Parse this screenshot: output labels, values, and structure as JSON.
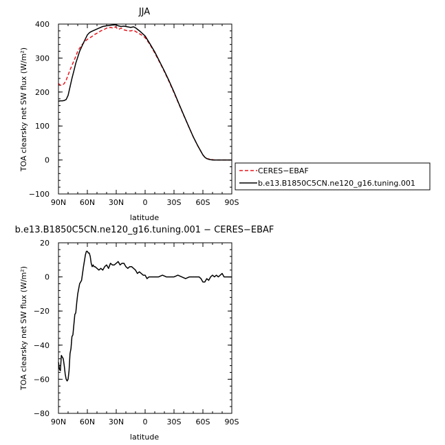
{
  "chart_data": [
    {
      "type": "line",
      "title": "JJA",
      "xlabel": "latitude",
      "ylabel": "TOA clearsky net SW flux (W/m²)",
      "xlim": [
        90,
        -90
      ],
      "ylim": [
        -100,
        400
      ],
      "xticks": [
        90,
        60,
        30,
        0,
        -30,
        -60,
        -90
      ],
      "xtick_labels": [
        "90N",
        "60N",
        "30N",
        "0",
        "30S",
        "60S",
        "90S"
      ],
      "yticks": [
        -100,
        0,
        100,
        200,
        300,
        400
      ],
      "ytick_labels": [
        "−100",
        "0",
        "100",
        "200",
        "300",
        "400"
      ],
      "grid": false,
      "legend": "outside-right",
      "series": [
        {
          "name": "CERES−EBAF",
          "color": "#e8141b",
          "dash": "dashed",
          "x": [
            90,
            88,
            86,
            84,
            82,
            80,
            78,
            75,
            72,
            70,
            66,
            62,
            60,
            56,
            52,
            50,
            46,
            42,
            40,
            36,
            33,
            31,
            29,
            27,
            25,
            22,
            18,
            15,
            12,
            8,
            5,
            2,
            0,
            -5,
            -10,
            -15,
            -20,
            -25,
            -30,
            -35,
            -40,
            -45,
            -50,
            -55,
            -60,
            -62,
            -64,
            -66,
            -68,
            -70,
            -72,
            -75,
            -80,
            -85,
            -90
          ],
          "y": [
            225,
            220,
            220,
            225,
            235,
            250,
            265,
            285,
            305,
            320,
            338,
            350,
            355,
            362,
            370,
            373,
            380,
            385,
            388,
            390,
            388,
            392,
            387,
            385,
            388,
            383,
            380,
            380,
            382,
            375,
            370,
            365,
            360,
            340,
            315,
            288,
            260,
            230,
            198,
            165,
            132,
            100,
            68,
            40,
            15,
            8,
            4,
            3,
            2,
            1,
            0,
            0,
            0,
            0,
            0
          ]
        },
        {
          "name": "b.e13.B1850C5CN.ne120_g16.tuning.001",
          "color": "#000000",
          "dash": "solid",
          "x": [
            90,
            88,
            86,
            84,
            82,
            80,
            78,
            76,
            74,
            72,
            68,
            64,
            60,
            58,
            56,
            52,
            48,
            44,
            40,
            35,
            30,
            28,
            25,
            22,
            20,
            15,
            12,
            10,
            5,
            0,
            -5,
            -10,
            -15,
            -20,
            -25,
            -30,
            -35,
            -40,
            -45,
            -50,
            -55,
            -60,
            -62,
            -64,
            -66,
            -68,
            -70,
            -75,
            -80,
            -85,
            -90
          ],
          "y": [
            173,
            174,
            174,
            175,
            178,
            190,
            215,
            240,
            262,
            285,
            320,
            345,
            368,
            374,
            378,
            383,
            388,
            393,
            395,
            397,
            398,
            395,
            393,
            394,
            393,
            390,
            392,
            389,
            378,
            365,
            342,
            318,
            290,
            262,
            232,
            200,
            166,
            133,
            100,
            68,
            40,
            15,
            8,
            4,
            2,
            1,
            0,
            0,
            0,
            0,
            0
          ]
        }
      ]
    },
    {
      "type": "line",
      "title": "b.e13.B1850C5CN.ne120_g16.tuning.001 − CERES−EBAF",
      "xlabel": "latitude",
      "ylabel": "TOA clearsky net SW flux (W/m²)",
      "xlim": [
        90,
        -90
      ],
      "ylim": [
        -80,
        20
      ],
      "xticks": [
        90,
        60,
        30,
        0,
        -30,
        -60,
        -90
      ],
      "xtick_labels": [
        "90N",
        "60N",
        "30N",
        "0",
        "30S",
        "60S",
        "90S"
      ],
      "yticks": [
        -80,
        -60,
        -40,
        -20,
        0,
        20
      ],
      "ytick_labels": [
        "−80",
        "−60",
        "−40",
        "−20",
        "0",
        "20"
      ],
      "grid": false,
      "series": [
        {
          "color": "#000000",
          "dash": "solid",
          "x": [
            90,
            89,
            88,
            87,
            86,
            85,
            84,
            83,
            82,
            81,
            80,
            79,
            78,
            77,
            76,
            75,
            74,
            73,
            72,
            71,
            70,
            68,
            66,
            64,
            62,
            61,
            60,
            59,
            58,
            57,
            56,
            55,
            54,
            53,
            52,
            50,
            48,
            46,
            44,
            42,
            40,
            38,
            36,
            34,
            32,
            30,
            28,
            26,
            24,
            22,
            20,
            18,
            16,
            14,
            12,
            10,
            8,
            6,
            4,
            2,
            0,
            -2,
            -4,
            -6,
            -8,
            -10,
            -14,
            -18,
            -22,
            -26,
            -30,
            -34,
            -38,
            -42,
            -46,
            -50,
            -52,
            -54,
            -56,
            -58,
            -60,
            -62,
            -64,
            -66,
            -68,
            -70,
            -72,
            -74,
            -76,
            -78,
            -80,
            -82,
            -84,
            -86,
            -88,
            -90
          ],
          "y": [
            -50,
            -54,
            -55,
            -46,
            -47,
            -48,
            -52,
            -57,
            -60,
            -61,
            -60,
            -55,
            -45,
            -42,
            -35,
            -34,
            -28,
            -22,
            -21,
            -15,
            -10,
            -4,
            -2,
            6,
            13,
            15,
            15,
            14,
            14,
            12,
            8,
            6,
            7,
            6,
            6,
            5,
            4,
            5,
            4,
            6,
            7,
            5,
            8,
            7,
            7,
            8,
            9,
            7,
            8,
            8,
            6,
            5,
            6,
            6,
            5,
            4,
            2,
            3,
            2,
            1,
            1,
            -1,
            0,
            0,
            0,
            0,
            0,
            1,
            0,
            0,
            0,
            1,
            0,
            -1,
            0,
            0,
            0,
            0,
            0,
            -1,
            -3,
            -3,
            -1,
            -2,
            0,
            1,
            0,
            1,
            0,
            1,
            2,
            0,
            0,
            0,
            0,
            0
          ]
        }
      ]
    }
  ]
}
